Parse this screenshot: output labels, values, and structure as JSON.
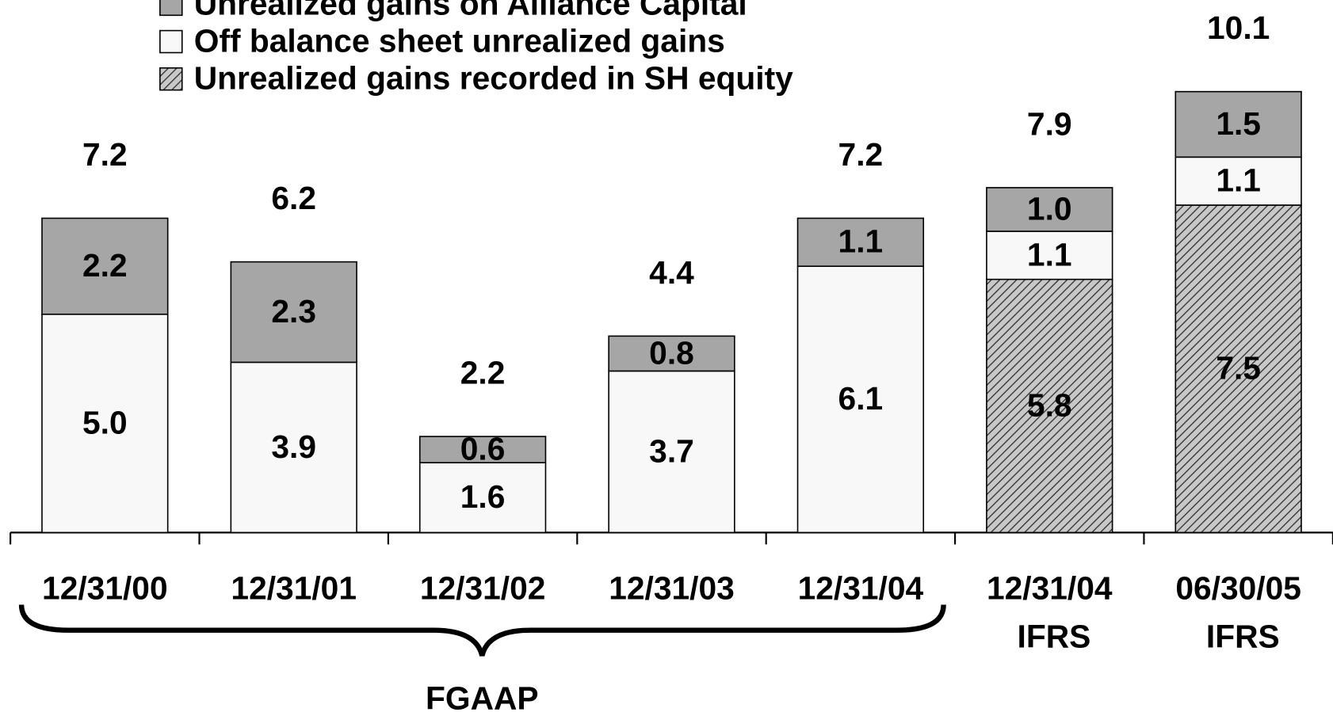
{
  "chart_data": {
    "type": "stacked_bar",
    "categories": [
      "12/31/00",
      "12/31/01",
      "12/31/02",
      "12/31/03",
      "12/31/04",
      "12/31/04 IFRS",
      "06/30/05 IFRS"
    ],
    "series": [
      {
        "name": "Unrealized gains recorded in SH equity",
        "color": "hatch",
        "values": [
          null,
          null,
          null,
          null,
          null,
          5.8,
          7.5
        ]
      },
      {
        "name": "Off balance sheet unrealized gains",
        "color": "#f8f8f8",
        "values": [
          5.0,
          3.9,
          1.6,
          3.7,
          6.1,
          1.1,
          1.1
        ],
        "value_labels": [
          "5.0",
          "3.9",
          "1.6",
          "3.7",
          "6.1",
          "1.1",
          "1.1"
        ]
      },
      {
        "name": "Unrealized gains on Alliance Capital",
        "color": "#a6a6a6",
        "values": [
          2.2,
          2.3,
          0.6,
          0.8,
          1.1,
          1.0,
          1.5
        ],
        "value_labels": [
          "2.2",
          "2.3",
          "0.6",
          "0.8",
          "1.1",
          "1.0",
          "1.5"
        ]
      }
    ],
    "totals": [
      7.2,
      6.2,
      2.2,
      4.4,
      7.2,
      7.9,
      10.1
    ],
    "annotations": [
      "FGAAP"
    ],
    "legend_order": [
      2,
      1,
      0
    ]
  }
}
